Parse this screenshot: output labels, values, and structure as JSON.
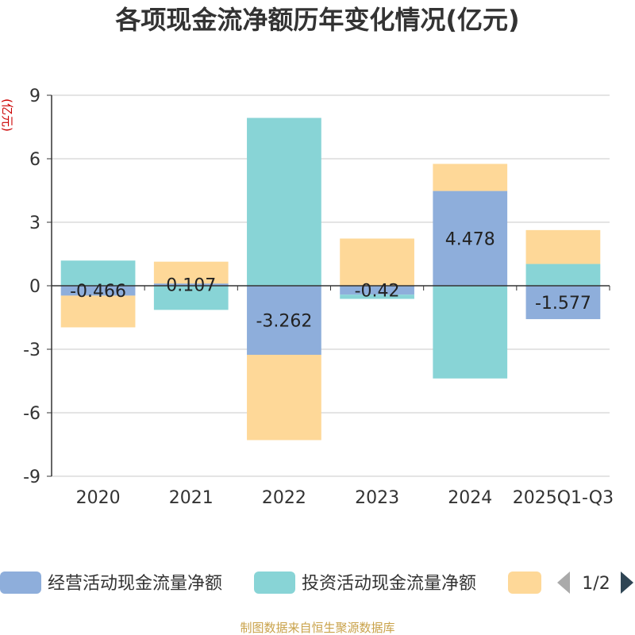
{
  "chart_data": {
    "type": "bar",
    "stacked": true,
    "title": "各项现金流净额历年变化情况(亿元)",
    "ylabel": "(亿元)",
    "xlabel": "",
    "categories": [
      "2020",
      "2021",
      "2022",
      "2023",
      "2024",
      "2025Q1-Q3"
    ],
    "ylim": [
      -9,
      9
    ],
    "yticks": [
      9,
      6,
      3,
      0,
      -3,
      -6,
      -9
    ],
    "grid": true,
    "legend_position": "bottom",
    "series": [
      {
        "name": "经营活动现金流量净额",
        "color": "#8eaedb",
        "values": [
          -0.466,
          0.107,
          -3.262,
          -0.42,
          4.478,
          -1.577
        ],
        "labels": [
          "-0.466",
          "0.107",
          "-3.262",
          "-0.42",
          "4.478",
          "-1.577"
        ]
      },
      {
        "name": "投资活动现金流量净额",
        "color": "#88d4d6",
        "values": [
          1.19,
          -1.14,
          7.93,
          -0.2,
          -4.38,
          1.03
        ]
      },
      {
        "name": "",
        "color": "#fed898",
        "values": [
          -1.5,
          1.03,
          -4.03,
          2.23,
          1.28,
          1.6
        ]
      }
    ],
    "legend": {
      "page": "1/2"
    },
    "source": "制图数据来自恒生聚源数据库"
  }
}
